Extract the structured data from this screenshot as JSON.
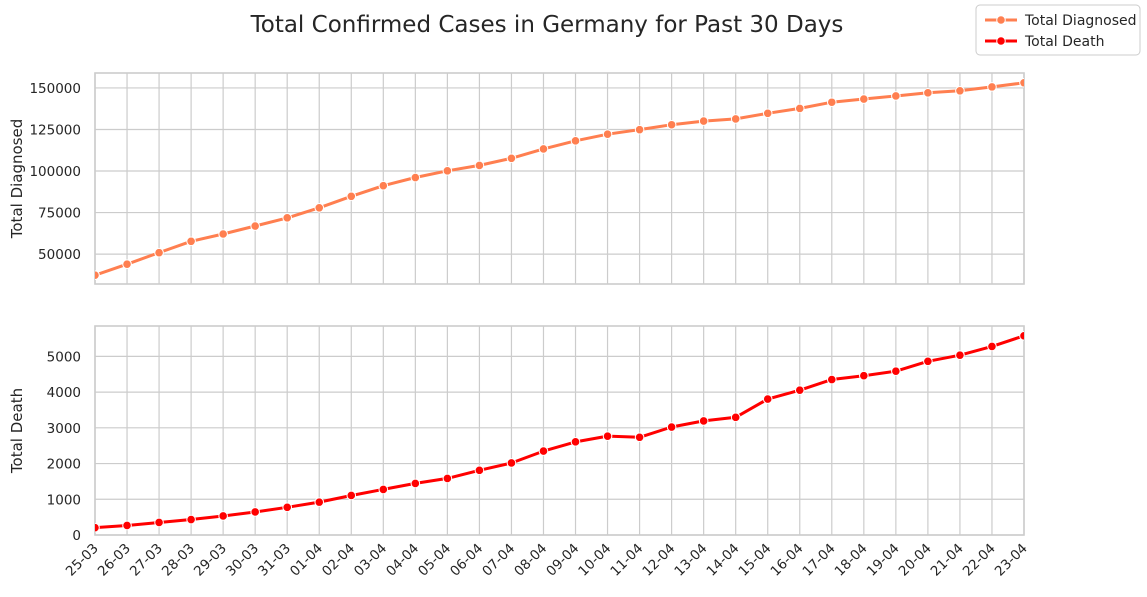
{
  "chart_data": {
    "type": "line",
    "title": "Total Confirmed Cases in Germany for Past 30 Days",
    "x": [
      "25-03",
      "26-03",
      "27-03",
      "28-03",
      "29-03",
      "30-03",
      "31-03",
      "01-04",
      "02-04",
      "03-04",
      "04-04",
      "05-04",
      "06-04",
      "07-04",
      "08-04",
      "09-04",
      "10-04",
      "11-04",
      "12-04",
      "13-04",
      "14-04",
      "15-04",
      "16-04",
      "17-04",
      "18-04",
      "19-04",
      "20-04",
      "21-04",
      "22-04",
      "23-04"
    ],
    "legend": {
      "placement": "top-right",
      "entries": [
        "Total Diagnosed",
        "Total Death"
      ]
    },
    "grid": true,
    "panels": [
      {
        "series_name": "Total Diagnosed",
        "ylabel": "Total Diagnosed",
        "color": "#ff7f50",
        "ylim": [
          32000,
          159000
        ],
        "yticks": [
          50000,
          75000,
          100000,
          125000,
          150000
        ],
        "values": [
          37323,
          43938,
          50871,
          57695,
          62095,
          66885,
          71808,
          77872,
          84794,
          91159,
          96092,
          100123,
          103375,
          107663,
          113296,
          118181,
          122171,
          124908,
          127854,
          130072,
          131359,
          134753,
          137698,
          141397,
          143342,
          145184,
          147065,
          148291,
          150648,
          153129
        ]
      },
      {
        "series_name": "Total Death",
        "ylabel": "Total Death",
        "color": "#ff0000",
        "ylim": [
          0,
          5850
        ],
        "yticks": [
          0,
          1000,
          2000,
          3000,
          4000,
          5000
        ],
        "values": [
          206,
          267,
          351,
          433,
          533,
          645,
          775,
          920,
          1107,
          1275,
          1444,
          1584,
          1810,
          2016,
          2349,
          2607,
          2767,
          2736,
          3022,
          3194,
          3294,
          3804,
          4052,
          4352,
          4459,
          4586,
          4862,
          5033,
          5279,
          5575
        ]
      }
    ]
  }
}
